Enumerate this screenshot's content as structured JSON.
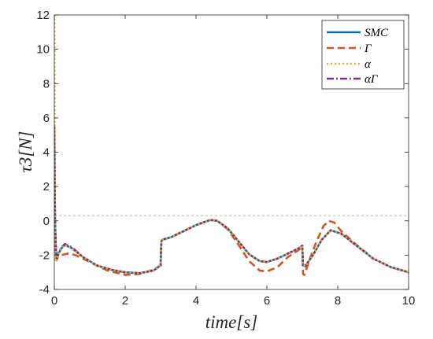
{
  "chart_data": {
    "type": "line",
    "title": "",
    "xlabel": "time[s]",
    "ylabel": "τ3[N]",
    "xlim": [
      0,
      10
    ],
    "ylim": [
      -4,
      12
    ],
    "xticks": [
      0,
      2,
      4,
      6,
      8,
      10
    ],
    "yticks": [
      -4,
      -2,
      0,
      2,
      4,
      6,
      8,
      10,
      12
    ],
    "xtick_labels": [
      "0",
      "2",
      "4",
      "6",
      "8",
      "10"
    ],
    "ytick_labels": [
      "-4",
      "-2",
      "0",
      "2",
      "4",
      "6",
      "8",
      "10",
      "12"
    ],
    "grid": false,
    "legend_position": "top-right",
    "reference_line": {
      "y": 0.3,
      "style": "dashed",
      "color": "#b0b0b0"
    },
    "series": [
      {
        "name": "SMC",
        "color": "#0072BD",
        "dash": "solid",
        "x": [
          0,
          0.02,
          0.05,
          0.08,
          0.12,
          0.2,
          0.3,
          0.5,
          0.8,
          1.2,
          1.6,
          2.0,
          2.4,
          2.8,
          3.0,
          3.02,
          3.05,
          3.3,
          3.6,
          4.0,
          4.4,
          4.6,
          4.9,
          5.2,
          5.5,
          5.8,
          6.0,
          6.3,
          6.6,
          6.9,
          7.0,
          7.02,
          7.08,
          7.3,
          7.55,
          7.8,
          8.1,
          8.5,
          9.0,
          9.5,
          10.0
        ],
        "y": [
          5.4,
          0.0,
          -2.0,
          -2.2,
          -1.9,
          -1.6,
          -1.4,
          -1.6,
          -2.1,
          -2.6,
          -2.85,
          -3.0,
          -3.05,
          -2.9,
          -2.6,
          -1.2,
          -1.1,
          -0.95,
          -0.65,
          -0.25,
          0.05,
          0.0,
          -0.45,
          -1.2,
          -1.95,
          -2.35,
          -2.4,
          -2.2,
          -1.9,
          -1.6,
          -1.45,
          -2.6,
          -2.65,
          -2.0,
          -1.1,
          -0.55,
          -0.75,
          -1.4,
          -2.2,
          -2.7,
          -3.0
        ]
      },
      {
        "name": "Γ",
        "color": "#D95319",
        "dash": "dashed",
        "x": [
          0,
          0.02,
          0.05,
          0.1,
          0.2,
          0.4,
          0.6,
          1.0,
          1.5,
          2.0,
          2.4,
          2.8,
          3.0,
          3.02,
          3.05,
          3.3,
          3.6,
          4.0,
          4.4,
          4.6,
          4.9,
          5.2,
          5.5,
          5.8,
          6.0,
          6.3,
          6.6,
          6.9,
          7.0,
          7.02,
          7.06,
          7.2,
          7.4,
          7.6,
          7.75,
          7.9,
          8.1,
          8.5,
          9.0,
          9.5,
          10.0
        ],
        "y": [
          3.0,
          0.0,
          -2.3,
          -2.1,
          -2.0,
          -1.9,
          -2.0,
          -2.4,
          -2.9,
          -3.15,
          -3.1,
          -2.85,
          -2.6,
          -1.2,
          -1.1,
          -0.95,
          -0.65,
          -0.25,
          0.05,
          0.0,
          -0.5,
          -1.4,
          -2.35,
          -2.9,
          -2.95,
          -2.7,
          -2.1,
          -1.7,
          -1.5,
          -3.1,
          -3.15,
          -2.3,
          -1.2,
          -0.3,
          0.0,
          -0.1,
          -0.6,
          -1.35,
          -2.2,
          -2.7,
          -3.0
        ]
      },
      {
        "name": "α",
        "color": "#EDB120",
        "dash": "dotted",
        "x": [
          0,
          0.003,
          0.01,
          0.02,
          0.04,
          0.06,
          0.1,
          0.2,
          0.3,
          0.5,
          0.8,
          1.2,
          1.6,
          2.0,
          2.4,
          2.8,
          3.0,
          3.02,
          3.05,
          3.3,
          3.6,
          4.0,
          4.4,
          4.6,
          4.9,
          5.2,
          5.5,
          5.8,
          6.0,
          6.3,
          6.6,
          6.9,
          7.0,
          7.02,
          7.08,
          7.3,
          7.55,
          7.8,
          8.1,
          8.5,
          9.0,
          9.5,
          10.0
        ],
        "y": [
          12,
          11.8,
          6.0,
          0.0,
          -2.3,
          -2.4,
          -2.0,
          -1.6,
          -1.4,
          -1.6,
          -2.1,
          -2.6,
          -2.85,
          -3.0,
          -3.05,
          -2.9,
          -2.6,
          -1.2,
          -1.1,
          -0.95,
          -0.65,
          -0.25,
          0.05,
          0.0,
          -0.45,
          -1.2,
          -1.95,
          -2.35,
          -2.4,
          -2.2,
          -1.9,
          -1.6,
          -1.45,
          -2.6,
          -2.65,
          -2.0,
          -1.1,
          -0.55,
          -0.75,
          -1.4,
          -2.2,
          -2.7,
          -3.0
        ]
      },
      {
        "name": "αΓ",
        "color": "#7E2F8E",
        "dash": "dashdot",
        "x": [
          0,
          0.02,
          0.05,
          0.08,
          0.12,
          0.2,
          0.3,
          0.5,
          0.8,
          1.2,
          1.6,
          2.0,
          2.4,
          2.8,
          3.0,
          3.02,
          3.05,
          3.3,
          3.6,
          4.0,
          4.4,
          4.6,
          4.9,
          5.2,
          5.5,
          5.8,
          6.0,
          6.3,
          6.6,
          6.9,
          7.0,
          7.02,
          7.08,
          7.3,
          7.55,
          7.8,
          8.1,
          8.5,
          9.0,
          9.5,
          10.0
        ],
        "y": [
          5.6,
          0.0,
          -2.1,
          -2.2,
          -1.85,
          -1.55,
          -1.35,
          -1.55,
          -2.1,
          -2.6,
          -2.85,
          -3.0,
          -3.05,
          -2.9,
          -2.6,
          -1.2,
          -1.1,
          -0.95,
          -0.65,
          -0.25,
          0.05,
          0.0,
          -0.45,
          -1.2,
          -1.95,
          -2.35,
          -2.4,
          -2.2,
          -1.9,
          -1.6,
          -1.45,
          -2.6,
          -2.65,
          -2.0,
          -1.1,
          -0.55,
          -0.75,
          -1.4,
          -2.2,
          -2.7,
          -3.0
        ]
      }
    ]
  }
}
